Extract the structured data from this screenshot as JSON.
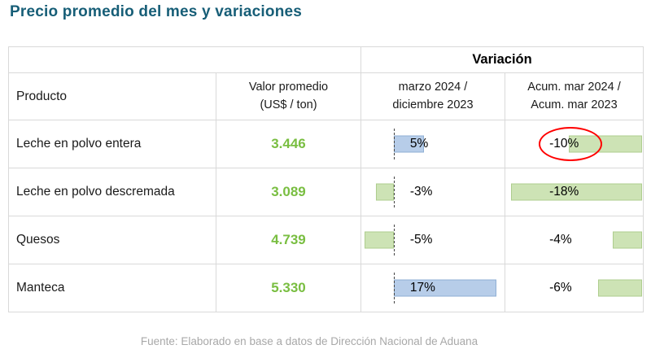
{
  "title": "Precio promedio del mes y variaciones",
  "footer": "Fuente: Elaborado en base a datos de Dirección Nacional de Aduana",
  "colors": {
    "title": "#175E77",
    "value_green": "#79BE41",
    "bar_positive_blue": "#B7CDE9",
    "bar_negative_green": "#CDE3B5",
    "highlight_circle": "#FF0000",
    "table_border": "#D9D9D9"
  },
  "table": {
    "variation_header": "Variación",
    "col_product": "Producto",
    "col_value_line1": "Valor promedio",
    "col_value_line2": "(US$ / ton)",
    "col_var1_line1": "marzo 2024 /",
    "col_var1_line2": "diciembre 2023",
    "col_var2_line1": "Acum. mar 2024 /",
    "col_var2_line2": "Acum. mar 2023",
    "rows": [
      {
        "product": "Leche en polvo entera",
        "value": "3.446",
        "var1_label": "5%",
        "var1": 5,
        "var2_label": "-10%",
        "var2": -10,
        "circled": true
      },
      {
        "product": "Leche en polvo descremada",
        "value": "3.089",
        "var1_label": "-3%",
        "var1": -3,
        "var2_label": "-18%",
        "var2": -18,
        "circled": false
      },
      {
        "product": "Quesos",
        "value": "4.739",
        "var1_label": "-5%",
        "var1": -5,
        "var2_label": "-4%",
        "var2": -4,
        "circled": false
      },
      {
        "product": "Manteca",
        "value": "5.330",
        "var1_label": "17%",
        "var1": 17,
        "var2_label": "-6%",
        "var2": -6,
        "circled": false
      }
    ]
  },
  "chart_data": {
    "type": "table",
    "title": "Precio promedio del mes y variaciones",
    "columns": [
      "Producto",
      "Valor promedio (US$ / ton)",
      "Variación: marzo 2024 / diciembre 2023",
      "Variación: Acum. mar 2024 / Acum. mar 2023"
    ],
    "rows": [
      [
        "Leche en polvo entera",
        3446,
        "5%",
        "-10%"
      ],
      [
        "Leche en polvo descremada",
        3089,
        "-3%",
        "-18%"
      ],
      [
        "Quesos",
        4739,
        "-5%",
        "-4%"
      ],
      [
        "Manteca",
        5330,
        "17%",
        "-6%"
      ]
    ],
    "data_bars": {
      "positive_color": "light blue",
      "negative_color": "light green",
      "var1_values": [
        5,
        -3,
        -5,
        17
      ],
      "var2_values": [
        -10,
        -18,
        -4,
        -6
      ]
    },
    "annotations": [
      "-10% (Leche en polvo entera, Acum.) circled in red"
    ],
    "source": "Fuente: Elaborado en base a datos de Dirección Nacional de Aduana"
  }
}
